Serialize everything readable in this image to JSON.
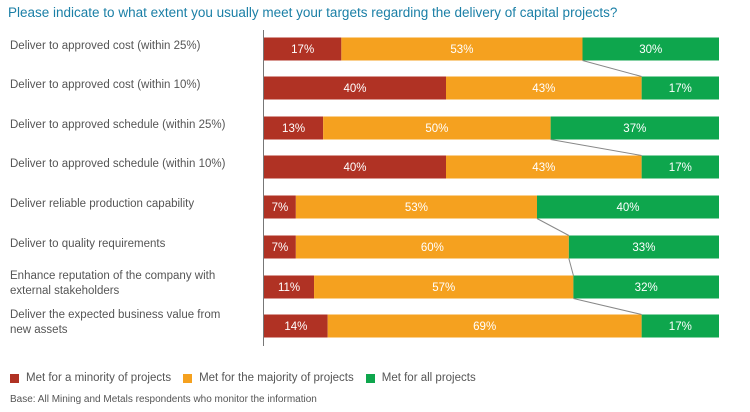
{
  "chart_data": {
    "type": "bar",
    "orientation": "horizontal",
    "stacked": true,
    "title": "Please indicate to what extent you usually meet your targets regarding the delivery of capital projects?",
    "categories": [
      "Deliver to approved cost (within 25%)",
      "Deliver to approved cost (within 10%)",
      "Deliver to approved schedule (within 25%)",
      "Deliver to approved schedule (within 10%)",
      "Deliver reliable production capability",
      "Deliver to quality requirements",
      "Enhance reputation of the company with external stakeholders",
      "Deliver the expected business value from new assets"
    ],
    "series": [
      {
        "name": "Met for a minority of projects",
        "color": "#b03224",
        "values": [
          17,
          40,
          13,
          40,
          7,
          7,
          11,
          14
        ]
      },
      {
        "name": "Met for the majority of projects",
        "color": "#f5a11f",
        "values": [
          53,
          43,
          50,
          43,
          53,
          60,
          57,
          69
        ]
      },
      {
        "name": "Met for all projects",
        "color": "#0ea64d",
        "values": [
          30,
          17,
          37,
          17,
          40,
          33,
          32,
          17
        ]
      }
    ],
    "connectors": [
      [
        0,
        1
      ],
      [
        2,
        3
      ],
      [
        4,
        5
      ],
      [
        5,
        6
      ],
      [
        6,
        7
      ]
    ],
    "xlim": [
      0,
      100
    ],
    "legend_position": "bottom-left",
    "grid": false,
    "footnote": "Base: All Mining and Metals respondents who monitor the information"
  },
  "labels": {
    "row_label_lines": [
      [
        "Deliver to approved cost (within 25%)"
      ],
      [
        "Deliver to approved cost (within 10%)"
      ],
      [
        "Deliver to approved schedule (within 25%)"
      ],
      [
        "Deliver to approved schedule (within 10%)"
      ],
      [
        "Deliver reliable production capability"
      ],
      [
        "Deliver to quality requirements"
      ],
      [
        "Enhance reputation of the company with",
        "external stakeholders"
      ],
      [
        "Deliver the expected business value from",
        "new assets"
      ]
    ]
  }
}
